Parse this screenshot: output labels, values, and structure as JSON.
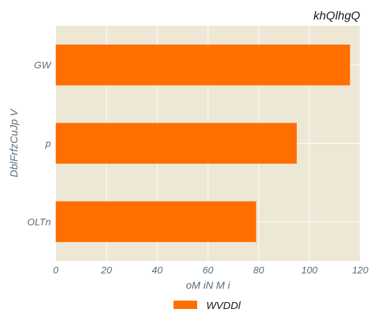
{
  "chart_data": {
    "type": "bar",
    "orientation": "horizontal",
    "title": "khQlhgQ",
    "xlabel": "oM iN M i",
    "ylabel": "DblFrfzCuJp  V",
    "categories": [
      "GW",
      "p",
      "OLTn"
    ],
    "series": [
      {
        "name": "WVDDl",
        "values": [
          116,
          95,
          79
        ],
        "color": "#ff6f00"
      }
    ],
    "xlim": [
      0,
      120
    ],
    "xticks": [
      0,
      20,
      40,
      60,
      80,
      100,
      120
    ],
    "grid": true,
    "legend_position": "bottom-center",
    "colors": {
      "plot_background": "#ede7d5",
      "grid": "#ffffff",
      "bar": "#ff6f00"
    }
  }
}
